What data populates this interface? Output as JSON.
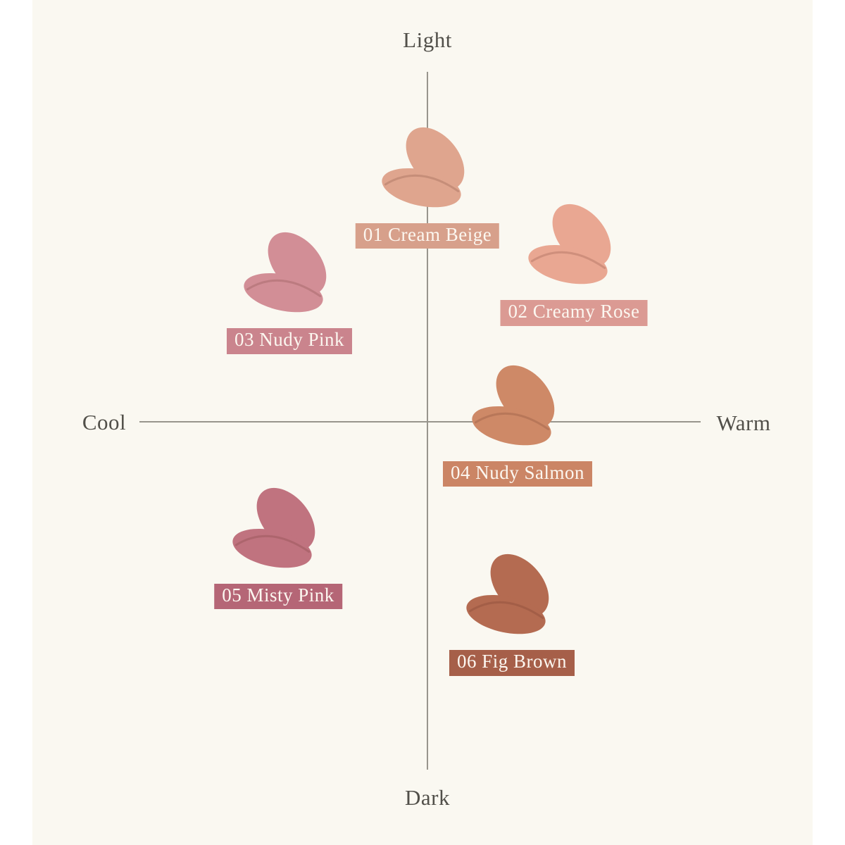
{
  "palette": {
    "page_bg": "#ffffff",
    "panel_bg": "#faf8f1",
    "axis_line": "#98958d",
    "axis_text": "#514f49",
    "label_text": "#fcf7f0",
    "smear_crease": "rgba(90,40,30,0.18)"
  },
  "chart_data": {
    "type": "scatter",
    "description": "Lip shade map plotting six swatch smears on Cool–Warm (x) and Light–Dark (y) axes",
    "x_axis": {
      "left_label": "Cool",
      "right_label": "Warm",
      "range": [
        -1,
        1
      ],
      "grid": false
    },
    "y_axis": {
      "top_label": "Light",
      "bottom_label": "Dark",
      "range": [
        -1,
        1
      ],
      "grid": false
    },
    "legend": "none",
    "points": [
      {
        "id": "01",
        "name": "Cream Beige",
        "label": "01 Cream Beige",
        "warmth": 0.0,
        "lightness": 0.71,
        "swatch_color": "#dfa58e",
        "label_bg": "#d7a08b"
      },
      {
        "id": "02",
        "name": "Creamy Rose",
        "label": "02 Creamy Rose",
        "warmth": 0.52,
        "lightness": 0.49,
        "swatch_color": "#e9a792",
        "label_bg": "#db9a93"
      },
      {
        "id": "03",
        "name": "Nudy Pink",
        "label": "03 Nudy Pink",
        "warmth": -0.49,
        "lightness": 0.41,
        "swatch_color": "#d28e96",
        "label_bg": "#ca848d"
      },
      {
        "id": "04",
        "name": "Nudy Salmon",
        "label": "04 Nudy Salmon",
        "warmth": 0.32,
        "lightness": 0.03,
        "swatch_color": "#ce8967",
        "label_bg": "#cb8565"
      },
      {
        "id": "05",
        "name": "Misty Pink",
        "label": "05 Misty Pink",
        "warmth": -0.53,
        "lightness": -0.32,
        "swatch_color": "#c0737f",
        "label_bg": "#b56676"
      },
      {
        "id": "06",
        "name": "Fig Brown",
        "label": "06 Fig Brown",
        "warmth": 0.3,
        "lightness": -0.51,
        "swatch_color": "#b46b51",
        "label_bg": "#a65f49"
      }
    ]
  }
}
